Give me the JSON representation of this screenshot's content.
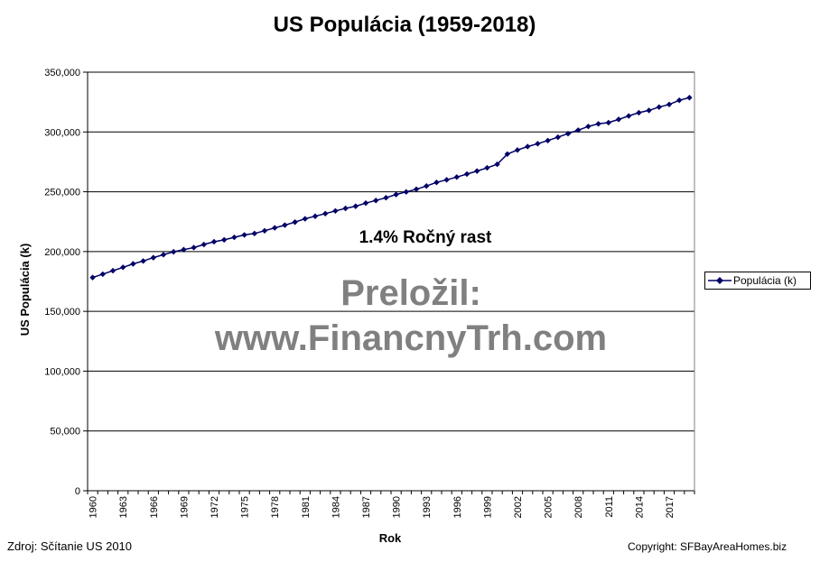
{
  "chart_data": {
    "type": "line",
    "title": "US Populácia (1959-2018)",
    "xlabel": "Rok",
    "ylabel": "US Populácia (k)",
    "ylim": [
      0,
      350000
    ],
    "y_ticks": [
      "0",
      "50,000",
      "100,000",
      "150,000",
      "200,000",
      "250,000",
      "300,000",
      "350,000"
    ],
    "x_tick_labels": [
      "1960",
      "1963",
      "1966",
      "1969",
      "1972",
      "1975",
      "1978",
      "1981",
      "1984",
      "1987",
      "1990",
      "1993",
      "1996",
      "1999",
      "2002",
      "2005",
      "2008",
      "2011",
      "2014",
      "2017"
    ],
    "x": [
      1960,
      1961,
      1962,
      1963,
      1964,
      1965,
      1966,
      1967,
      1968,
      1969,
      1970,
      1971,
      1972,
      1973,
      1974,
      1975,
      1976,
      1977,
      1978,
      1979,
      1980,
      1981,
      1982,
      1983,
      1984,
      1985,
      1986,
      1987,
      1988,
      1989,
      1990,
      1991,
      1992,
      1993,
      1994,
      1995,
      1996,
      1997,
      1998,
      1999,
      2000,
      2001,
      2002,
      2003,
      2004,
      2005,
      2006,
      2007,
      2008,
      2009,
      2010,
      2011,
      2012,
      2013,
      2014,
      2015,
      2016,
      2017,
      2018,
      2019
    ],
    "series": [
      {
        "name": "Populácia (k)",
        "color": "#000066",
        "values": [
          178300,
          181100,
          184000,
          186800,
          189700,
          192100,
          194900,
          197400,
          199800,
          201600,
          203300,
          205900,
          208200,
          209800,
          211900,
          213900,
          215100,
          217400,
          219800,
          222100,
          224600,
          227400,
          229500,
          231700,
          234000,
          236100,
          237900,
          240500,
          242700,
          245000,
          247700,
          249900,
          252100,
          254800,
          257800,
          260000,
          262300,
          264800,
          267300,
          270000,
          273000,
          281500,
          284900,
          287800,
          290200,
          292800,
          295600,
          298600,
          301500,
          304600,
          306800,
          307800,
          310500,
          313400,
          316100,
          318000,
          320800,
          323000,
          326500,
          328700
        ]
      }
    ],
    "annotations": [
      "1.4% Ročný rast",
      "Preložil:",
      "www.FinancnyTrh.com"
    ],
    "legend_position": "right",
    "grid": "horizontal"
  },
  "footer": {
    "source": "Zdroj: Sčítanie US 2010",
    "copyright": "Copyright:   SFBayAreaHomes.biz"
  }
}
